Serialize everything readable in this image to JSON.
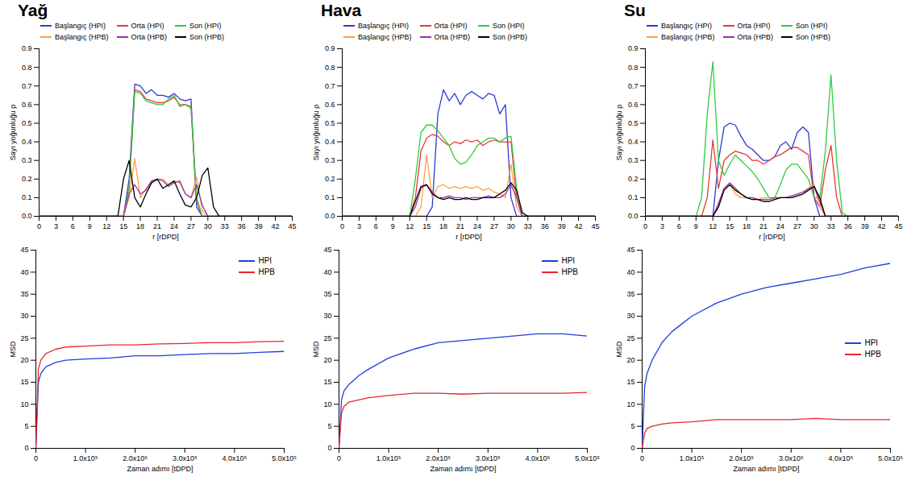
{
  "chart_data": [
    {
      "type": "line",
      "title": "Yağ",
      "x_label": "r [rDPD]",
      "y_label": "Sayı yoğunluğu ρ",
      "xlim": [
        0,
        45
      ],
      "xticks": [
        0,
        3,
        6,
        9,
        12,
        15,
        18,
        21,
        24,
        27,
        30,
        33,
        36,
        39,
        42,
        45
      ],
      "ylim": [
        0,
        0.9
      ],
      "yticks": [
        {
          "value": 0,
          "label": "0.0"
        },
        0.1,
        0.2,
        0.3,
        0.4,
        0.5,
        0.6,
        0.7,
        0.8,
        0.9
      ],
      "grid": false,
      "legend": "top",
      "x": [
        0,
        13,
        14,
        15,
        16,
        17,
        18,
        19,
        20,
        21,
        22,
        23,
        24,
        25,
        26,
        27,
        28,
        29,
        30,
        31,
        32,
        45
      ],
      "series": [
        {
          "name": "Başlangıç (HPI)",
          "color": "#2b3bd6",
          "values": [
            0,
            0,
            0,
            0,
            0.2,
            0.71,
            0.7,
            0.66,
            0.68,
            0.65,
            0.65,
            0.64,
            0.66,
            0.63,
            0.62,
            0.63,
            0.05,
            0,
            0,
            0,
            0,
            0
          ]
        },
        {
          "name": "Orta (HPI)",
          "color": "#e53935",
          "values": [
            0,
            0,
            0,
            0,
            0.15,
            0.68,
            0.67,
            0.63,
            0.62,
            0.61,
            0.61,
            0.62,
            0.64,
            0.6,
            0.6,
            0.59,
            0.08,
            0,
            0,
            0,
            0,
            0
          ]
        },
        {
          "name": "Son (HPI)",
          "color": "#2ecc40",
          "values": [
            0,
            0,
            0,
            0,
            0.15,
            0.67,
            0.66,
            0.62,
            0.61,
            0.6,
            0.6,
            0.63,
            0.65,
            0.59,
            0.6,
            0.58,
            0.1,
            0,
            0,
            0,
            0,
            0
          ]
        },
        {
          "name": "Başlangıç (HPB)",
          "color": "#ff9f40",
          "values": [
            0,
            0,
            0,
            0,
            0.1,
            0.31,
            0.1,
            0.15,
            0.19,
            0.2,
            0.2,
            0.17,
            0.19,
            0.18,
            0.12,
            0.1,
            0.21,
            0.03,
            0,
            0,
            0,
            0
          ]
        },
        {
          "name": "Orta (HPB)",
          "color": "#9b30b0",
          "values": [
            0,
            0,
            0,
            0,
            0.12,
            0.17,
            0.12,
            0.14,
            0.19,
            0.2,
            0.19,
            0.16,
            0.18,
            0.19,
            0.12,
            0.1,
            0.17,
            0.06,
            0,
            0,
            0,
            0
          ]
        },
        {
          "name": "Son (HPB)",
          "color": "#000000",
          "values": [
            0,
            0,
            0,
            0.2,
            0.3,
            0.1,
            0.05,
            0.12,
            0.18,
            0.2,
            0.15,
            0.17,
            0.19,
            0.12,
            0.06,
            0.05,
            0.1,
            0.22,
            0.26,
            0.05,
            0,
            0
          ]
        }
      ]
    },
    {
      "type": "line",
      "x_label": "Zaman adımı [tDPD]",
      "y_label": "MSD",
      "xlim": [
        0,
        500000
      ],
      "xticks": [
        0,
        {
          "value": 100000,
          "label": "1.0x10⁵"
        },
        {
          "value": 200000,
          "label": "2.0x10⁵"
        },
        {
          "value": 300000,
          "label": "3.0x10⁵"
        },
        {
          "value": 400000,
          "label": "4.0x10⁵"
        },
        {
          "value": 500000,
          "label": "5.0x10⁵"
        }
      ],
      "ylim": [
        0,
        45
      ],
      "yticks": [
        0,
        5,
        10,
        15,
        20,
        25,
        30,
        35,
        40,
        45
      ],
      "grid": false,
      "legend": "upper right",
      "x": [
        0,
        5000,
        10000,
        20000,
        40000,
        60000,
        100000,
        150000,
        200000,
        250000,
        300000,
        350000,
        400000,
        450000,
        500000
      ],
      "series": [
        {
          "name": "HPI",
          "color": "#1f3fdd",
          "values": [
            0,
            15,
            17,
            18.5,
            19.5,
            20,
            20.3,
            20.5,
            21,
            21,
            21.3,
            21.5,
            21.5,
            21.8,
            22
          ]
        },
        {
          "name": "HPB",
          "color": "#e8262a",
          "values": [
            0,
            18,
            20,
            21.5,
            22.5,
            23,
            23.2,
            23.5,
            23.5,
            23.7,
            23.8,
            24,
            24,
            24.2,
            24.3
          ]
        }
      ]
    },
    {
      "type": "line",
      "title": "Hava",
      "x_label": "r [rDPD]",
      "y_label": "Sayı yoğunluğu ρ",
      "xlim": [
        0,
        45
      ],
      "xticks": [
        0,
        3,
        6,
        9,
        12,
        15,
        18,
        21,
        24,
        27,
        30,
        33,
        36,
        39,
        42,
        45
      ],
      "ylim": [
        0,
        0.9
      ],
      "yticks": [
        {
          "value": 0,
          "label": "0.0"
        },
        0.1,
        0.2,
        0.3,
        0.4,
        0.5,
        0.6,
        0.7,
        0.8,
        0.9
      ],
      "grid": false,
      "legend": "top",
      "x": [
        0,
        11,
        12,
        13,
        14,
        15,
        16,
        17,
        18,
        19,
        20,
        21,
        22,
        23,
        24,
        25,
        26,
        27,
        28,
        29,
        30,
        31,
        32,
        33,
        45
      ],
      "series": [
        {
          "name": "Başlangıç (HPI)",
          "color": "#2b3bd6",
          "values": [
            0,
            0,
            0,
            0,
            0,
            0,
            0.05,
            0.55,
            0.68,
            0.62,
            0.66,
            0.6,
            0.65,
            0.67,
            0.65,
            0.63,
            0.66,
            0.65,
            0.55,
            0.6,
            0.1,
            0,
            0,
            0,
            0
          ]
        },
        {
          "name": "Orta (HPI)",
          "color": "#e53935",
          "values": [
            0,
            0,
            0,
            0.1,
            0.35,
            0.42,
            0.44,
            0.43,
            0.4,
            0.38,
            0.4,
            0.39,
            0.41,
            0.4,
            0.41,
            0.38,
            0.4,
            0.41,
            0.4,
            0.4,
            0.4,
            0.1,
            0,
            0,
            0
          ]
        },
        {
          "name": "Son (HPI)",
          "color": "#2ecc40",
          "values": [
            0,
            0,
            0,
            0.2,
            0.45,
            0.49,
            0.49,
            0.46,
            0.42,
            0.38,
            0.31,
            0.28,
            0.29,
            0.33,
            0.38,
            0.4,
            0.42,
            0.42,
            0.4,
            0.42,
            0.43,
            0.15,
            0,
            0,
            0
          ]
        },
        {
          "name": "Başlangıç (HPB)",
          "color": "#ff9f40",
          "values": [
            0,
            0,
            0,
            0,
            0.05,
            0.33,
            0.1,
            0.16,
            0.17,
            0.15,
            0.16,
            0.15,
            0.16,
            0.15,
            0.16,
            0.14,
            0.15,
            0.13,
            0.12,
            0.1,
            0.28,
            0.05,
            0,
            0,
            0
          ]
        },
        {
          "name": "Orta (HPB)",
          "color": "#9b30b0",
          "values": [
            0,
            0,
            0,
            0.05,
            0.15,
            0.17,
            0.13,
            0.1,
            0.1,
            0.11,
            0.1,
            0.1,
            0.09,
            0.1,
            0.1,
            0.1,
            0.11,
            0.1,
            0.1,
            0.12,
            0.17,
            0.1,
            0,
            0,
            0
          ]
        },
        {
          "name": "Son (HPB)",
          "color": "#000000",
          "values": [
            0,
            0,
            0,
            0.08,
            0.16,
            0.17,
            0.12,
            0.1,
            0.09,
            0.1,
            0.09,
            0.09,
            0.1,
            0.09,
            0.09,
            0.1,
            0.1,
            0.1,
            0.12,
            0.14,
            0.18,
            0.14,
            0.02,
            0,
            0
          ]
        }
      ]
    },
    {
      "type": "line",
      "x_label": "Zaman adımı [tDPD]",
      "y_label": "MSD",
      "xlim": [
        0,
        500000
      ],
      "xticks": [
        0,
        {
          "value": 100000,
          "label": "1.0x10⁵"
        },
        {
          "value": 200000,
          "label": "2.0x10⁵"
        },
        {
          "value": 300000,
          "label": "3.0x10⁵"
        },
        {
          "value": 400000,
          "label": "4.0x10⁵"
        },
        {
          "value": 500000,
          "label": "5.0x10⁵"
        }
      ],
      "ylim": [
        0,
        45
      ],
      "yticks": [
        0,
        5,
        10,
        15,
        20,
        25,
        30,
        35,
        40,
        45
      ],
      "grid": false,
      "legend": "upper right",
      "x": [
        0,
        5000,
        10000,
        20000,
        40000,
        60000,
        100000,
        150000,
        200000,
        250000,
        300000,
        350000,
        400000,
        450000,
        500000
      ],
      "series": [
        {
          "name": "HPI",
          "color": "#1f3fdd",
          "values": [
            0,
            11,
            13,
            14.5,
            16.5,
            18,
            20.5,
            22.5,
            24,
            24.5,
            25,
            25.5,
            26,
            26,
            25.5
          ]
        },
        {
          "name": "HPB",
          "color": "#e8262a",
          "values": [
            0,
            8,
            9.5,
            10.5,
            11,
            11.5,
            12,
            12.5,
            12.5,
            12.3,
            12.5,
            12.5,
            12.5,
            12.5,
            12.7
          ]
        }
      ]
    },
    {
      "type": "line",
      "title": "Su",
      "x_label": "r [rDPD]",
      "y_label": "Sayı yoğunluğu ρ",
      "xlim": [
        0,
        45
      ],
      "xticks": [
        0,
        3,
        6,
        9,
        12,
        15,
        18,
        21,
        24,
        27,
        30,
        33,
        36,
        39,
        42,
        45
      ],
      "ylim": [
        0,
        0.9
      ],
      "yticks": [
        {
          "value": 0,
          "label": "0.0"
        },
        0.1,
        0.2,
        0.3,
        0.4,
        0.5,
        0.6,
        0.7,
        0.8,
        0.9
      ],
      "grid": false,
      "legend": "top",
      "x": [
        0,
        9,
        10,
        11,
        12,
        13,
        14,
        15,
        16,
        17,
        18,
        19,
        20,
        21,
        22,
        23,
        24,
        25,
        26,
        27,
        28,
        29,
        30,
        31,
        32,
        33,
        34,
        35,
        36,
        45
      ],
      "series": [
        {
          "name": "Başlangıç (HPI)",
          "color": "#2b3bd6",
          "values": [
            0,
            0,
            0,
            0,
            0,
            0.3,
            0.48,
            0.5,
            0.49,
            0.43,
            0.38,
            0.36,
            0.33,
            0.3,
            0.3,
            0.32,
            0.38,
            0.4,
            0.36,
            0.45,
            0.48,
            0.45,
            0.1,
            0,
            0,
            0,
            0,
            0,
            0,
            0
          ]
        },
        {
          "name": "Orta (HPI)",
          "color": "#e53935",
          "values": [
            0,
            0,
            0,
            0.1,
            0.41,
            0.15,
            0.3,
            0.33,
            0.35,
            0.34,
            0.33,
            0.3,
            0.3,
            0.28,
            0.3,
            0.32,
            0.33,
            0.35,
            0.37,
            0.37,
            0.35,
            0.33,
            0.1,
            0.05,
            0.25,
            0.38,
            0.1,
            0,
            0,
            0
          ]
        },
        {
          "name": "Son (HPI)",
          "color": "#2ecc40",
          "values": [
            0,
            0,
            0.1,
            0.55,
            0.83,
            0.3,
            0.22,
            0.28,
            0.33,
            0.3,
            0.27,
            0.24,
            0.2,
            0.15,
            0.1,
            0.1,
            0.17,
            0.25,
            0.28,
            0.28,
            0.24,
            0.2,
            0.1,
            0.1,
            0.35,
            0.76,
            0.3,
            0.02,
            0,
            0
          ]
        },
        {
          "name": "Başlangıç (HPB)",
          "color": "#ff9f40",
          "values": [
            0,
            0,
            0,
            0,
            0,
            0.05,
            0.15,
            0.17,
            0.12,
            0.1,
            0.1,
            0.1,
            0.09,
            0.1,
            0.1,
            0.09,
            0.1,
            0.1,
            0.1,
            0.11,
            0.12,
            0.15,
            0.17,
            0.05,
            0,
            0,
            0,
            0,
            0,
            0
          ]
        },
        {
          "name": "Orta (HPB)",
          "color": "#9b30b0",
          "values": [
            0,
            0,
            0,
            0,
            0,
            0.07,
            0.15,
            0.18,
            0.15,
            0.12,
            0.1,
            0.1,
            0.09,
            0.09,
            0.09,
            0.1,
            0.1,
            0.1,
            0.11,
            0.12,
            0.13,
            0.15,
            0.16,
            0.08,
            0,
            0,
            0,
            0,
            0,
            0
          ]
        },
        {
          "name": "Son (HPB)",
          "color": "#000000",
          "values": [
            0,
            0,
            0,
            0,
            0,
            0.05,
            0.14,
            0.17,
            0.14,
            0.12,
            0.1,
            0.09,
            0.09,
            0.08,
            0.08,
            0.09,
            0.1,
            0.1,
            0.1,
            0.11,
            0.12,
            0.14,
            0.16,
            0.1,
            0,
            0,
            0,
            0,
            0,
            0
          ]
        }
      ]
    },
    {
      "type": "line",
      "x_label": "Zaman adımı [tDPD]",
      "y_label": "MSD",
      "xlim": [
        0,
        500000
      ],
      "xticks": [
        0,
        {
          "value": 100000,
          "label": "1.0x10⁵"
        },
        {
          "value": 200000,
          "label": "2.0x10⁵"
        },
        {
          "value": 300000,
          "label": "3.0x10⁵"
        },
        {
          "value": 400000,
          "label": "4.0x10⁵"
        },
        {
          "value": 500000,
          "label": "5.0x10⁵"
        }
      ],
      "ylim": [
        0,
        45
      ],
      "yticks": [
        0,
        5,
        10,
        15,
        20,
        25,
        30,
        35,
        40,
        45
      ],
      "grid": false,
      "legend": "right",
      "x": [
        0,
        5000,
        10000,
        20000,
        40000,
        60000,
        100000,
        150000,
        200000,
        250000,
        300000,
        350000,
        400000,
        450000,
        500000
      ],
      "series": [
        {
          "name": "HPI",
          "color": "#1f3fdd",
          "values": [
            0,
            14,
            17,
            20,
            24,
            26.5,
            30,
            33,
            35,
            36.5,
            37.5,
            38.5,
            39.5,
            41,
            42
          ]
        },
        {
          "name": "HPB",
          "color": "#e8262a",
          "values": [
            0,
            3.5,
            4.5,
            5,
            5.5,
            5.8,
            6,
            6.5,
            6.5,
            6.5,
            6.5,
            6.8,
            6.5,
            6.5,
            6.5
          ]
        }
      ]
    }
  ]
}
